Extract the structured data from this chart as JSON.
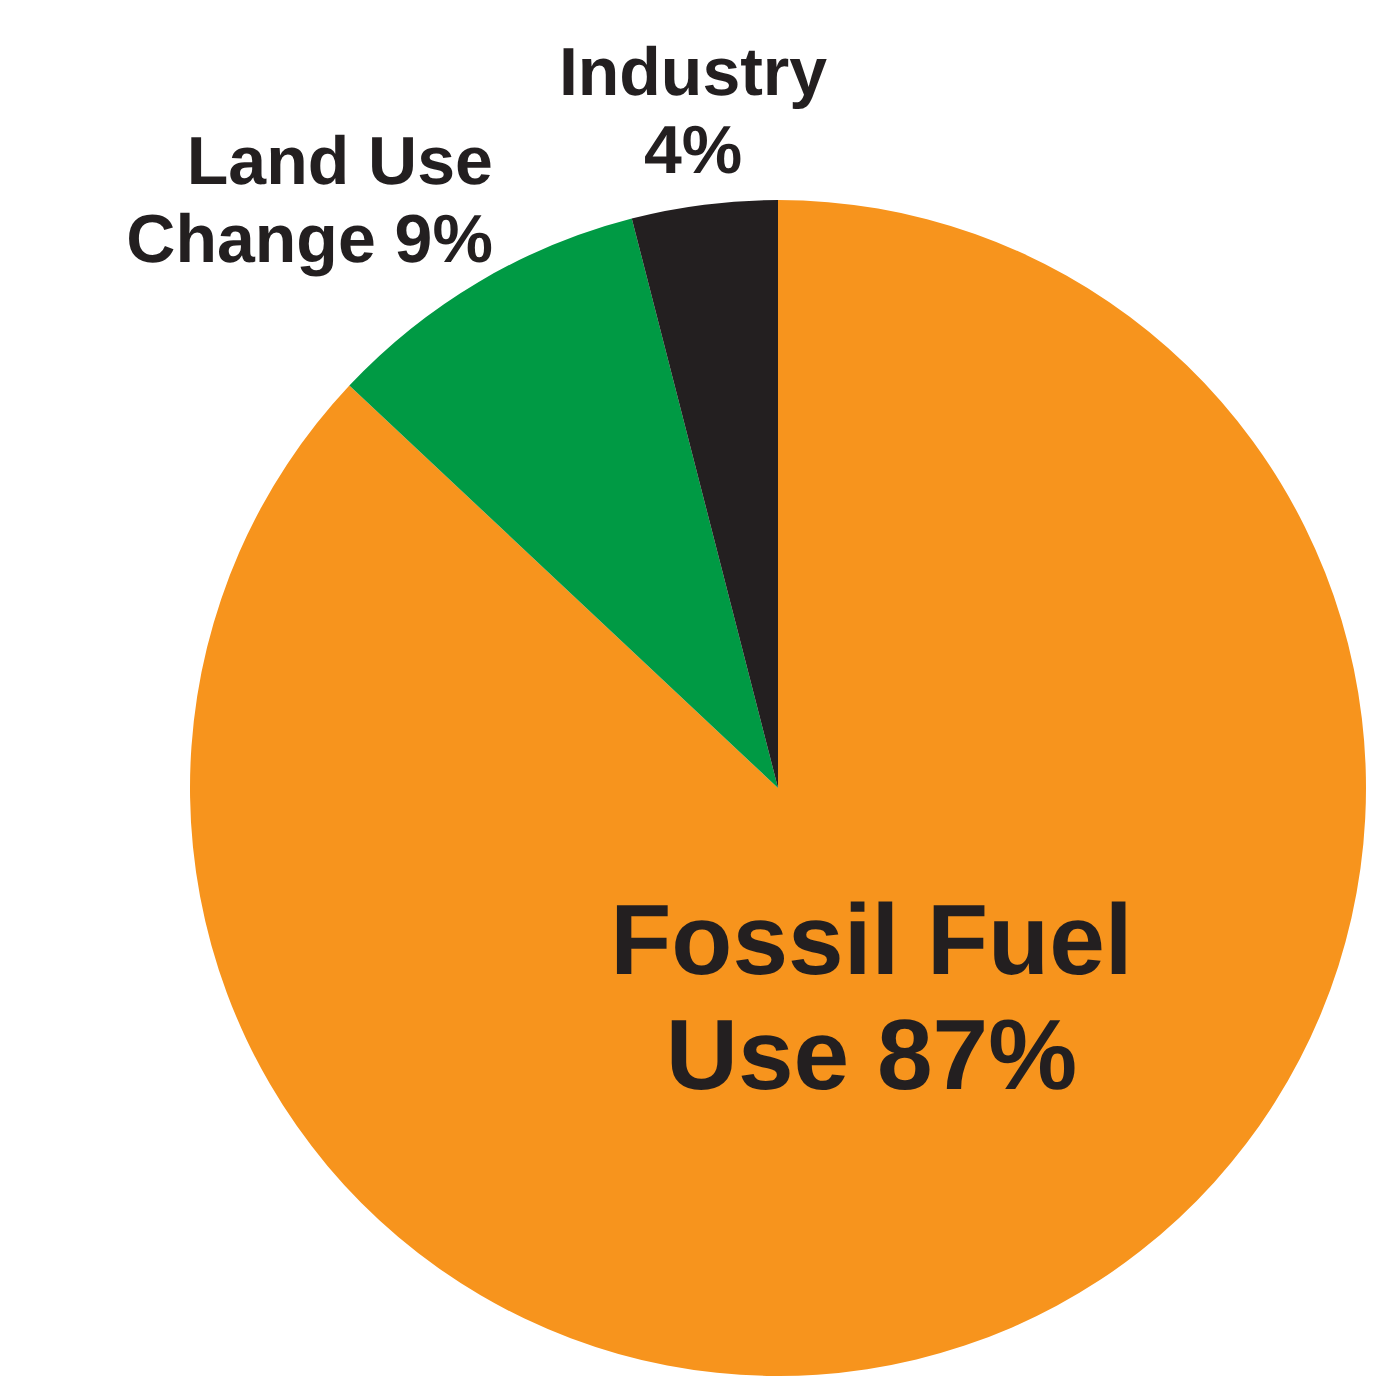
{
  "chart_data": {
    "type": "pie",
    "categories": [
      "Fossil Fuel Use",
      "Land Use Change",
      "Industry"
    ],
    "values": [
      87,
      9,
      4
    ],
    "colors": [
      "#f7941d",
      "#009a44",
      "#231f20"
    ],
    "value_labels": [
      "87%",
      "9%",
      "4%"
    ],
    "legend": false
  }
}
